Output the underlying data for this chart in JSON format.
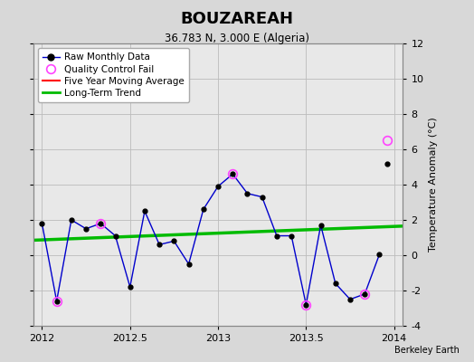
{
  "title": "BOUZAREAH",
  "subtitle": "36.783 N, 3.000 E (Algeria)",
  "ylabel": "Temperature Anomaly (°C)",
  "credit": "Berkeley Earth",
  "xlim": [
    2011.95,
    2014.05
  ],
  "ylim": [
    -4,
    12
  ],
  "yticks": [
    -4,
    -2,
    0,
    2,
    4,
    6,
    8,
    10,
    12
  ],
  "xticks": [
    2012,
    2012.5,
    2013,
    2013.5,
    2014
  ],
  "background_color": "#d8d8d8",
  "plot_bg_color": "#e8e8e8",
  "raw_x": [
    2012.0,
    2012.0833,
    2012.1667,
    2012.25,
    2012.3333,
    2012.4167,
    2012.5,
    2012.5833,
    2012.6667,
    2012.75,
    2012.8333,
    2012.9167,
    2013.0,
    2013.0833,
    2013.1667,
    2013.25,
    2013.3333,
    2013.4167,
    2013.5,
    2013.5833,
    2013.6667,
    2013.75,
    2013.8333,
    2013.9167
  ],
  "raw_y": [
    1.8,
    -2.6,
    2.0,
    1.5,
    1.8,
    1.1,
    -1.8,
    2.5,
    0.6,
    0.8,
    -0.5,
    2.6,
    3.9,
    4.6,
    3.5,
    3.3,
    1.1,
    1.1,
    -2.8,
    1.7,
    -1.6,
    -2.5,
    -2.2,
    0.05
  ],
  "qc_fail_x": [
    2012.0833,
    2012.3333,
    2013.0833,
    2013.5,
    2013.8333
  ],
  "qc_fail_y": [
    -2.6,
    1.8,
    4.6,
    -2.8,
    -2.2
  ],
  "isolated_x": [
    2013.9583
  ],
  "isolated_y": [
    5.2
  ],
  "qc_isolated_x": [
    2013.9583
  ],
  "qc_isolated_y": [
    6.5
  ],
  "trend_x": [
    2011.95,
    2014.05
  ],
  "trend_y": [
    0.85,
    1.65
  ],
  "raw_color": "#0000cc",
  "marker_color": "#000000",
  "qc_color": "#ff44ff",
  "trend_color": "#00bb00",
  "mavg_color": "#ff0000",
  "grid_color": "#bbbbbb",
  "legend_bg": "#ffffff"
}
